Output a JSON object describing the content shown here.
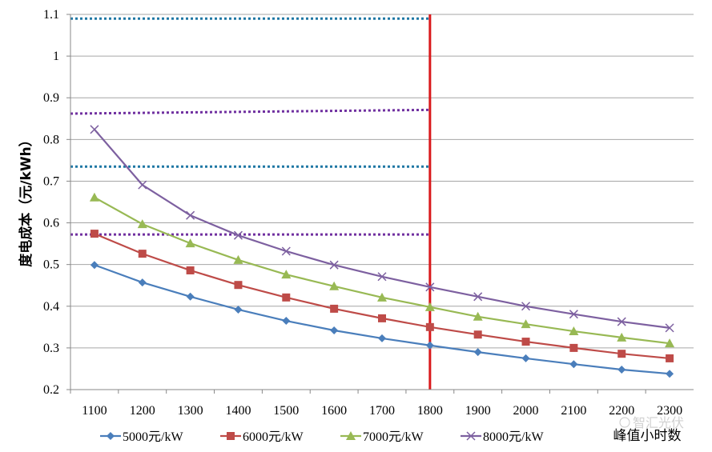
{
  "chart_data": {
    "type": "line",
    "title": "",
    "xlabel": "峰值小时数",
    "ylabel": "度电成本（元/kWh）",
    "categories": [
      "1100",
      "1200",
      "1300",
      "1400",
      "1500",
      "1600",
      "1700",
      "1800",
      "1900",
      "2000",
      "2100",
      "2200",
      "2300"
    ],
    "ylim": [
      0.2,
      1.1
    ],
    "yticks": [
      "0.2",
      "0.3",
      "0.4",
      "0.5",
      "0.6",
      "0.7",
      "0.8",
      "0.9",
      "1",
      "1.1"
    ],
    "grid": true,
    "legend_position": "bottom",
    "series": [
      {
        "name": "5000元/kW",
        "color": "#4a7ebb",
        "marker": "diamond",
        "values": [
          0.499,
          0.457,
          0.423,
          0.392,
          0.365,
          0.342,
          0.323,
          0.306,
          0.29,
          0.275,
          0.261,
          0.248,
          0.238
        ]
      },
      {
        "name": "6000元/kW",
        "color": "#be4b48",
        "marker": "square",
        "values": [
          0.574,
          0.526,
          0.486,
          0.451,
          0.421,
          0.394,
          0.371,
          0.35,
          0.332,
          0.315,
          0.3,
          0.286,
          0.275
        ]
      },
      {
        "name": "7000元/kW",
        "color": "#98b954",
        "marker": "triangle",
        "values": [
          0.661,
          0.597,
          0.551,
          0.511,
          0.476,
          0.448,
          0.421,
          0.398,
          0.375,
          0.357,
          0.34,
          0.325,
          0.311
        ]
      },
      {
        "name": "8000元/kW",
        "color": "#7d60a0",
        "marker": "x",
        "values": [
          0.824,
          0.691,
          0.618,
          0.57,
          0.532,
          0.499,
          0.471,
          0.446,
          0.423,
          0.4,
          0.381,
          0.363,
          0.348
        ]
      }
    ],
    "reference_lines": [
      {
        "orientation": "vertical",
        "x": "1800",
        "color": "#d9191c",
        "style": "solid"
      },
      {
        "orientation": "horizontal",
        "y_start": 1.09,
        "y_end": 1.09,
        "color": "#1f77a4",
        "style": "dotted"
      },
      {
        "orientation": "horizontal",
        "y_start": 0.862,
        "y_end": 0.871,
        "color": "#7030a0",
        "style": "dotted"
      },
      {
        "orientation": "horizontal",
        "y_start": 0.735,
        "y_end": 0.735,
        "color": "#1f77a4",
        "style": "dotted"
      },
      {
        "orientation": "horizontal",
        "y_start": 0.572,
        "y_end": 0.572,
        "color": "#7030a0",
        "style": "dotted"
      }
    ]
  },
  "watermark": "智汇光伏"
}
